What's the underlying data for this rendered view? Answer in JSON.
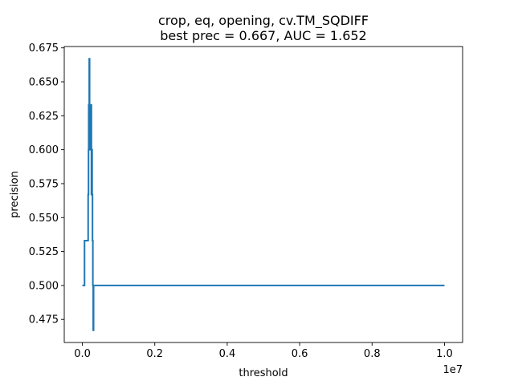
{
  "chart_data": {
    "type": "line",
    "title_lines": [
      "crop, eq, opening, cv.TM_SQDIFF",
      "best prec = 0.667, AUC = 1.652"
    ],
    "xlabel": "threshold",
    "ylabel": "precision",
    "x_offset_label": "1e7",
    "x_scale": 10000000,
    "xlim": [
      -0.05,
      1.05
    ],
    "ylim": [
      0.458,
      0.676
    ],
    "x_ticks": [
      0.0,
      0.2,
      0.4,
      0.6,
      0.8,
      1.0
    ],
    "x_tick_labels": [
      "0.0",
      "0.2",
      "0.4",
      "0.6",
      "0.8",
      "1.0"
    ],
    "y_ticks": [
      0.475,
      0.5,
      0.525,
      0.55,
      0.575,
      0.6,
      0.625,
      0.65,
      0.675
    ],
    "y_tick_labels": [
      "0.475",
      "0.500",
      "0.525",
      "0.550",
      "0.575",
      "0.600",
      "0.625",
      "0.650",
      "0.675"
    ],
    "line_color": "#1f77b4",
    "series": [
      {
        "x": [
          0.0,
          0.006,
          0.006,
          0.016,
          0.016,
          0.017,
          0.017,
          0.0175,
          0.0175,
          0.018,
          0.018,
          0.019,
          0.019,
          0.02,
          0.02,
          0.021,
          0.021,
          0.022,
          0.022,
          0.023,
          0.023,
          0.024,
          0.024,
          0.025,
          0.025,
          0.026,
          0.026,
          0.027,
          0.027,
          0.028,
          0.028,
          0.029,
          0.029,
          0.03,
          0.03,
          0.031,
          0.031,
          0.032,
          0.032,
          1.0
        ],
        "y": [
          0.5,
          0.5,
          0.533,
          0.533,
          0.567,
          0.567,
          0.6,
          0.6,
          0.633,
          0.633,
          0.6,
          0.6,
          0.667,
          0.667,
          0.633,
          0.633,
          0.6,
          0.6,
          0.633,
          0.633,
          0.6,
          0.6,
          0.633,
          0.633,
          0.567,
          0.567,
          0.6,
          0.6,
          0.567,
          0.567,
          0.533,
          0.533,
          0.5,
          0.5,
          0.467,
          0.467,
          0.5,
          0.5,
          0.5,
          0.5
        ]
      }
    ]
  }
}
